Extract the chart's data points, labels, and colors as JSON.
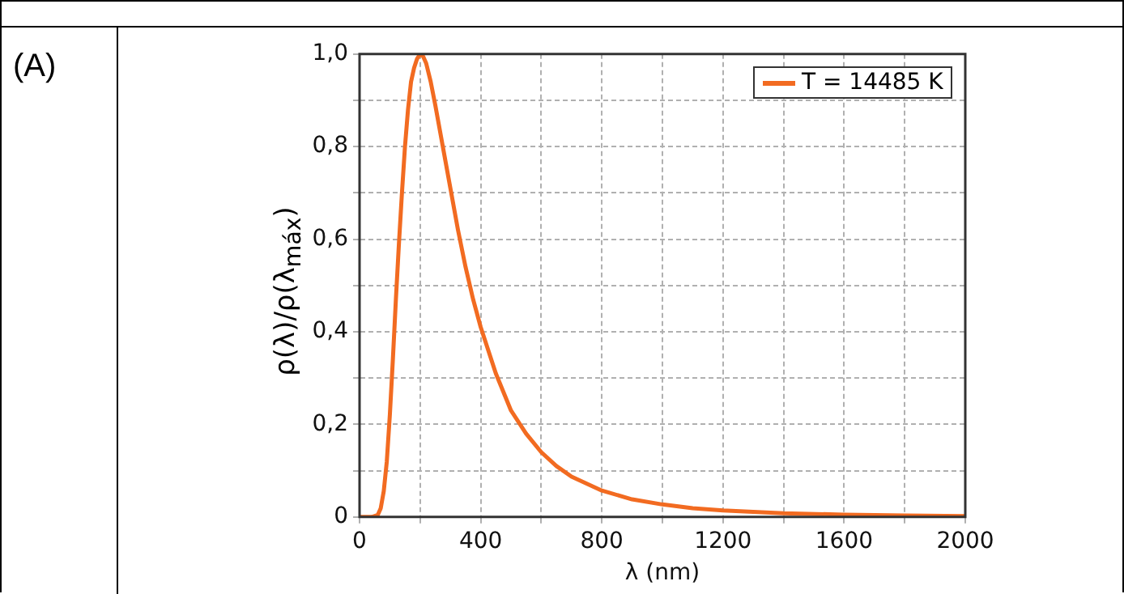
{
  "chart_data": {
    "type": "line",
    "xlabel": "λ (nm)",
    "ylabel": "ρ(λ)/ρ(λ$_{máx}$)",
    "annotations": [
      "(A)"
    ],
    "x": [
      0,
      20,
      40,
      60,
      70,
      80,
      90,
      100,
      110,
      120,
      130,
      140,
      150,
      160,
      170,
      180,
      190,
      200,
      210,
      220,
      235,
      250,
      275,
      300,
      325,
      350,
      375,
      400,
      450,
      500,
      550,
      600,
      650,
      700,
      800,
      900,
      1000,
      1100,
      1200,
      1400,
      1600,
      1800,
      2000
    ],
    "series": [
      {
        "name": "T = 14485 K",
        "color": "#f26b21",
        "values": [
          0,
          0,
          0,
          0.004,
          0.019,
          0.056,
          0.12,
          0.22,
          0.34,
          0.47,
          0.59,
          0.7,
          0.8,
          0.88,
          0.94,
          0.97,
          0.99,
          1,
          0.995,
          0.98,
          0.94,
          0.89,
          0.8,
          0.71,
          0.62,
          0.54,
          0.47,
          0.41,
          0.31,
          0.23,
          0.18,
          0.14,
          0.11,
          0.087,
          0.057,
          0.038,
          0.027,
          0.019,
          0.014,
          0.008,
          0.005,
          0.003,
          0.002
        ]
      }
    ],
    "xlim": [
      0,
      2000
    ],
    "ylim": [
      0,
      1
    ],
    "xticks": [
      0,
      {
        "value": 200,
        "label": null
      },
      400,
      {
        "value": 600,
        "label": null
      },
      800,
      {
        "value": 1000,
        "label": null
      },
      1200,
      {
        "value": 1400,
        "label": null
      },
      1600,
      {
        "value": 1800,
        "label": null
      },
      2000
    ],
    "yticks": [
      0,
      {
        "value": 0.1,
        "label": null
      },
      {
        "value": 0.2,
        "label": "0,2"
      },
      {
        "value": 0.3,
        "label": null
      },
      {
        "value": 0.4,
        "label": "0,4"
      },
      {
        "value": 0.5,
        "label": null
      },
      {
        "value": 0.6,
        "label": "0,6"
      },
      {
        "value": 0.7,
        "label": null
      },
      {
        "value": 0.8,
        "label": "0,8"
      },
      {
        "value": 0.9,
        "label": null
      },
      {
        "value": 1,
        "label": "1,0"
      }
    ],
    "grid": true,
    "legend": "top right",
    "marker": "none",
    "line_style": "solid"
  }
}
